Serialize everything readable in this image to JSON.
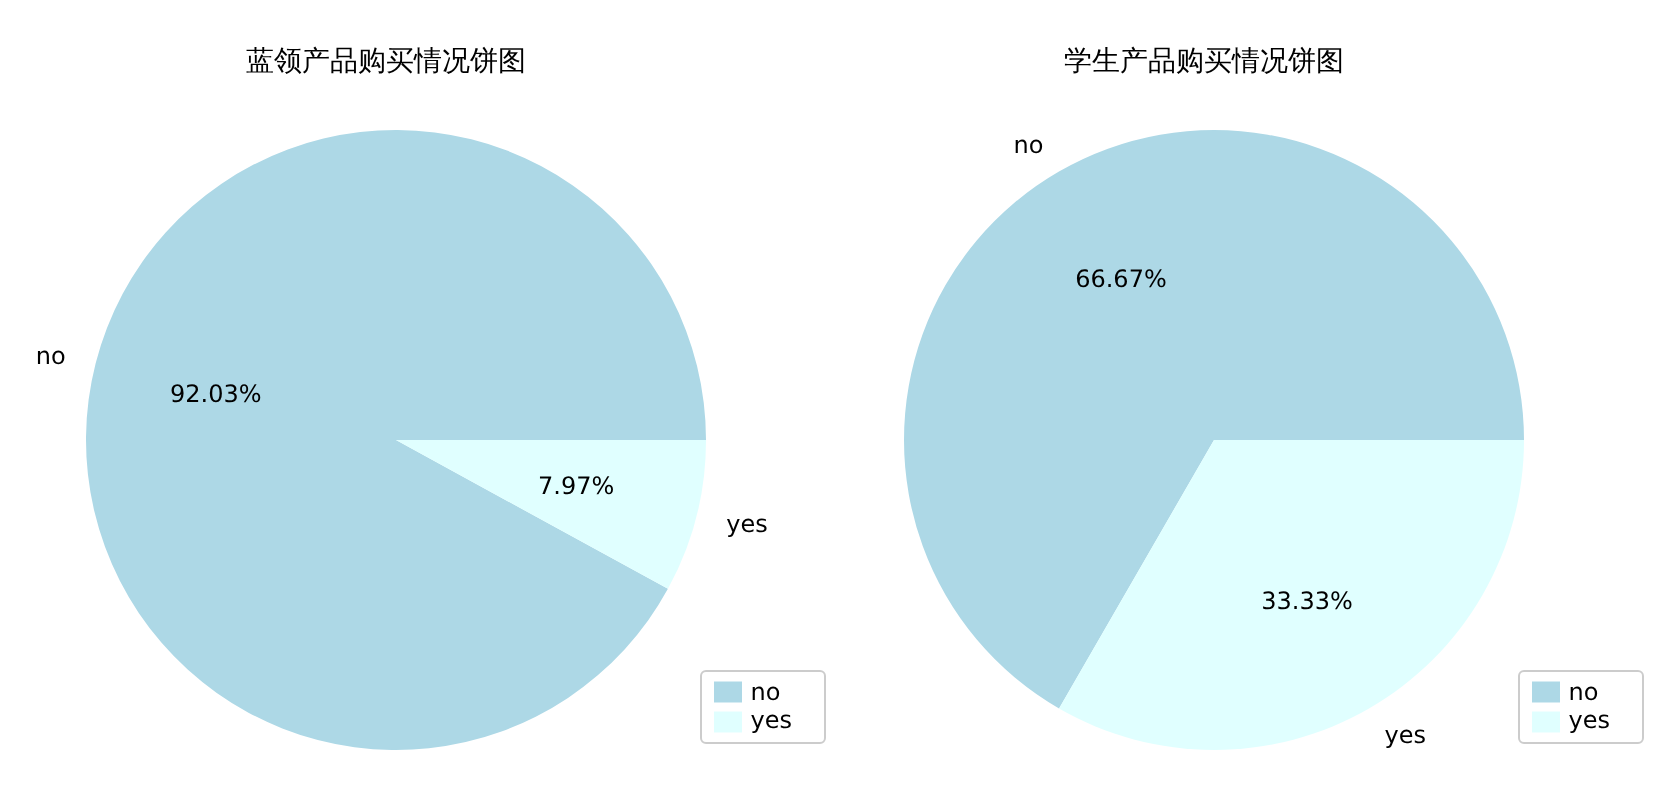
{
  "chart_data": [
    {
      "type": "pie",
      "title": "蓝领产品购买情况饼图",
      "categories": [
        "no",
        "yes"
      ],
      "values": [
        92.03,
        7.97
      ],
      "value_labels": [
        "92.03%",
        "7.97%"
      ],
      "colors": [
        "#add8e6",
        "#e0ffff"
      ],
      "legend": "bottom right"
    },
    {
      "type": "pie",
      "title": "学生产品购买情况饼图",
      "categories": [
        "no",
        "yes"
      ],
      "values": [
        66.67,
        33.33
      ],
      "value_labels": [
        "66.67%",
        "33.33%"
      ],
      "colors": [
        "#add8e6",
        "#e0ffff"
      ],
      "legend": "bottom right"
    }
  ]
}
